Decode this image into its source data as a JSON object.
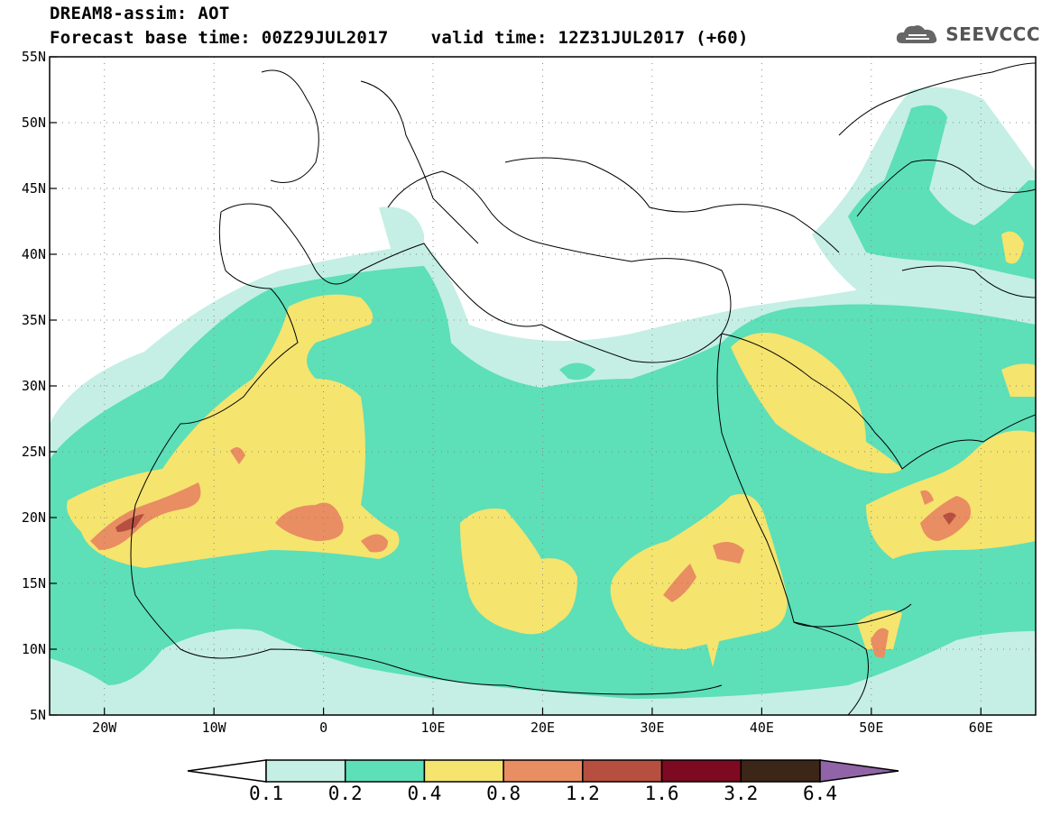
{
  "header": {
    "line1": "DREAM8-assim: AOT",
    "line2": "Forecast base time: 00Z29JUL2017    valid time: 12Z31JUL2017 (+60)"
  },
  "brand": {
    "text": "SEEVCCC",
    "icon": "cloud-logo-icon"
  },
  "map": {
    "lon_range": [
      -25,
      65
    ],
    "lat_range": [
      5,
      55
    ],
    "lon_ticks": [
      {
        "value": -20,
        "label": "20W"
      },
      {
        "value": -10,
        "label": "10W"
      },
      {
        "value": 0,
        "label": "0"
      },
      {
        "value": 10,
        "label": "10E"
      },
      {
        "value": 20,
        "label": "20E"
      },
      {
        "value": 30,
        "label": "30E"
      },
      {
        "value": 40,
        "label": "40E"
      },
      {
        "value": 50,
        "label": "50E"
      },
      {
        "value": 60,
        "label": "60E"
      }
    ],
    "lat_ticks": [
      {
        "value": 55,
        "label": "55N"
      },
      {
        "value": 50,
        "label": "50N"
      },
      {
        "value": 45,
        "label": "45N"
      },
      {
        "value": 40,
        "label": "40N"
      },
      {
        "value": 35,
        "label": "35N"
      },
      {
        "value": 30,
        "label": "30N"
      },
      {
        "value": 25,
        "label": "25N"
      },
      {
        "value": 20,
        "label": "20N"
      },
      {
        "value": 15,
        "label": "15N"
      },
      {
        "value": 10,
        "label": "10N"
      },
      {
        "value": 5,
        "label": "5N"
      }
    ],
    "grid": true
  },
  "colorbar": {
    "colors": [
      "#ffffff",
      "#c5efe4",
      "#5ddfb8",
      "#f5e46e",
      "#e98d62",
      "#b64f40",
      "#7d0a21",
      "#3b2618",
      "#9064a6"
    ],
    "labels": [
      "0.1",
      "0.2",
      "0.4",
      "0.8",
      "1.2",
      "1.6",
      "3.2",
      "6.4"
    ]
  },
  "colors": {
    "aot_01": "#c5efe4",
    "aot_02": "#5ddfb8",
    "aot_04": "#f5e46e",
    "aot_08": "#e98d62",
    "aot_12": "#b64f40",
    "aot_16": "#7d0a21"
  }
}
